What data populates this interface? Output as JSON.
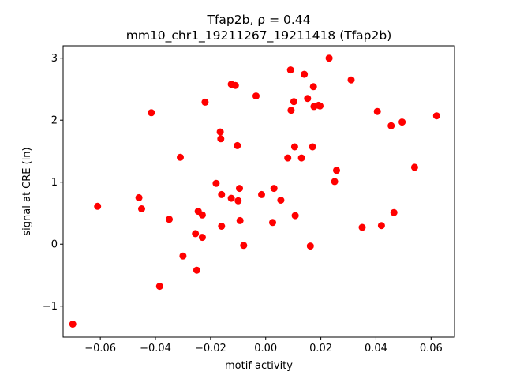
{
  "chart_data": {
    "type": "scatter",
    "title_line1": "Tfap2b, ρ = 0.44",
    "title_line2": "mm10_chr1_19211267_19211418 (Tfap2b)",
    "xlabel": "motif activity",
    "ylabel": "signal at CRE (ln)",
    "xlim": [
      -0.0735,
      0.0685
    ],
    "ylim": [
      -1.5,
      3.2
    ],
    "xticks": [
      -0.06,
      -0.04,
      -0.02,
      0.0,
      0.02,
      0.04,
      0.06
    ],
    "xtick_labels": [
      "−0.06",
      "−0.04",
      "−0.02",
      "0.00",
      "0.02",
      "0.04",
      "0.06"
    ],
    "yticks": [
      -1,
      0,
      1,
      2,
      3
    ],
    "ytick_labels": [
      "−1",
      "0",
      "1",
      "2",
      "3"
    ],
    "grid": false,
    "marker_color": "#ff0000",
    "points": [
      [
        -0.07,
        -1.29
      ],
      [
        -0.061,
        0.61
      ],
      [
        -0.046,
        0.75
      ],
      [
        -0.045,
        0.57
      ],
      [
        -0.0415,
        2.12
      ],
      [
        -0.0385,
        -0.68
      ],
      [
        -0.035,
        0.4
      ],
      [
        -0.031,
        1.4
      ],
      [
        -0.03,
        -0.19
      ],
      [
        -0.0255,
        0.17
      ],
      [
        -0.025,
        -0.42
      ],
      [
        -0.0245,
        0.53
      ],
      [
        -0.023,
        0.47
      ],
      [
        -0.023,
        0.11
      ],
      [
        -0.022,
        2.29
      ],
      [
        -0.018,
        0.98
      ],
      [
        -0.0165,
        1.81
      ],
      [
        -0.0163,
        1.7
      ],
      [
        -0.016,
        0.8
      ],
      [
        -0.016,
        0.29
      ],
      [
        -0.0125,
        2.58
      ],
      [
        -0.0125,
        0.74
      ],
      [
        -0.011,
        2.56
      ],
      [
        -0.0103,
        1.59
      ],
      [
        -0.01,
        0.7
      ],
      [
        -0.0095,
        0.9
      ],
      [
        -0.0093,
        0.38
      ],
      [
        -0.008,
        -0.02
      ],
      [
        -0.0035,
        2.39
      ],
      [
        -0.0015,
        0.8
      ],
      [
        0.0025,
        0.35
      ],
      [
        0.003,
        0.9
      ],
      [
        0.0055,
        0.71
      ],
      [
        0.008,
        1.39
      ],
      [
        0.009,
        2.81
      ],
      [
        0.0092,
        2.16
      ],
      [
        0.0102,
        2.3
      ],
      [
        0.0105,
        1.57
      ],
      [
        0.0107,
        0.46
      ],
      [
        0.013,
        1.39
      ],
      [
        0.014,
        2.74
      ],
      [
        0.0152,
        2.35
      ],
      [
        0.0162,
        -0.03
      ],
      [
        0.017,
        1.57
      ],
      [
        0.0173,
        2.54
      ],
      [
        0.0175,
        2.22
      ],
      [
        0.0192,
        2.24
      ],
      [
        0.0197,
        2.23
      ],
      [
        0.023,
        3.0
      ],
      [
        0.025,
        1.01
      ],
      [
        0.0257,
        1.19
      ],
      [
        0.031,
        2.65
      ],
      [
        0.035,
        0.27
      ],
      [
        0.0405,
        2.14
      ],
      [
        0.042,
        0.3
      ],
      [
        0.0455,
        1.91
      ],
      [
        0.0465,
        0.51
      ],
      [
        0.0495,
        1.97
      ],
      [
        0.054,
        1.24
      ],
      [
        0.062,
        2.07
      ]
    ]
  }
}
